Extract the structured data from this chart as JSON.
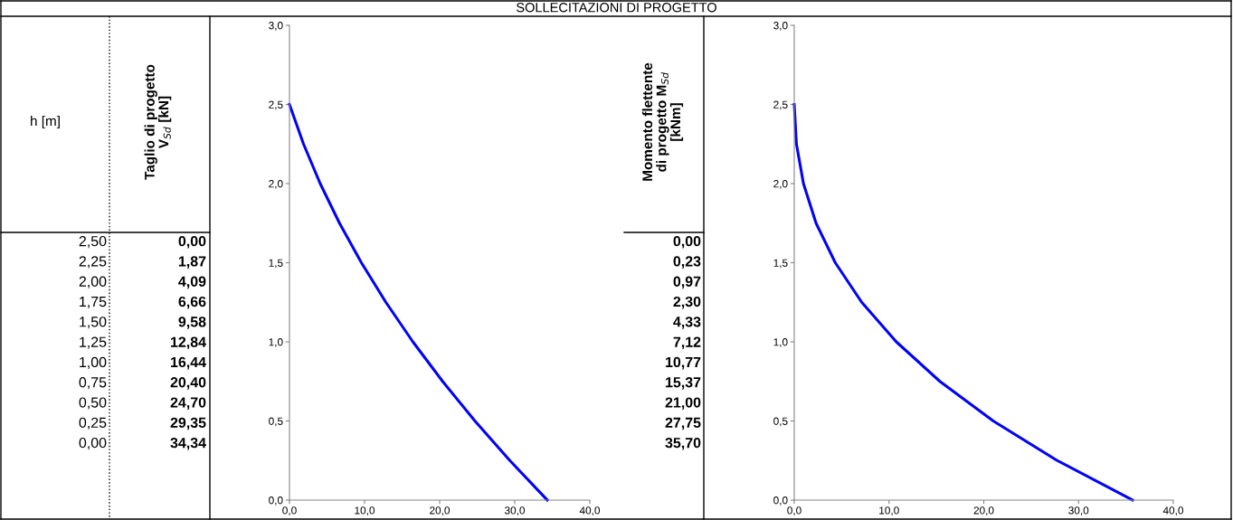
{
  "chart_data": [
    {
      "type": "line",
      "title": "SOLLECITAZIONI DI PROGETTO",
      "annotations": [
        "h [m]",
        "2,50",
        "2,25",
        "2,00",
        "1,75",
        "1,50",
        "1,25",
        "1,00",
        "0,75",
        "0,50",
        "0,25",
        "0,00",
        "Taglio di progetto\nV$_{Sd}$ [kN]",
        "0,00",
        "1,87",
        "4,09",
        "6,66",
        "9,58",
        "12,84",
        "16,44",
        "20,40",
        "24,70",
        "29,35",
        "34,34"
      ],
      "x": [
        0.0,
        1.87,
        4.09,
        6.66,
        9.58,
        12.84,
        16.44,
        20.4,
        24.7,
        29.35,
        34.34
      ],
      "series": [
        {
          "color": "#0000ff",
          "values": [
            2.5,
            2.25,
            2.0,
            1.75,
            1.5,
            1.25,
            1.0,
            0.75,
            0.5,
            0.25,
            0.0
          ]
        }
      ],
      "xlim": [
        0,
        40
      ],
      "ylim": [
        0,
        3
      ],
      "xticks": [
        {
          "value": 0,
          "label": "0,0"
        },
        {
          "value": 10,
          "label": "10,0"
        },
        {
          "value": 20,
          "label": "20,0"
        },
        {
          "value": 30,
          "label": "30,0"
        },
        {
          "value": 40,
          "label": "40,0"
        }
      ],
      "yticks": [
        {
          "value": 0,
          "label": "0,0"
        },
        {
          "value": 0.5,
          "label": "0,5"
        },
        {
          "value": 1,
          "label": "1,0"
        },
        {
          "value": 1.5,
          "label": "1,5"
        },
        {
          "value": 2,
          "label": "2,0"
        },
        {
          "value": 2.5,
          "label": "2,5"
        },
        {
          "value": 3,
          "label": "3,0"
        }
      ],
      "grid": false
    },
    {
      "type": "line",
      "annotations": [
        "Momento flettente\ndi progetto M$_{Sd}$\n[kNm]",
        "0,00",
        "0,23",
        "0,97",
        "2,30",
        "4,33",
        "7,12",
        "10,77",
        "15,37",
        "21,00",
        "27,75",
        "35,70"
      ],
      "x": [
        0.0,
        0.23,
        0.97,
        2.3,
        4.33,
        7.12,
        10.77,
        15.37,
        21.0,
        27.75,
        35.7
      ],
      "series": [
        {
          "color": "#0000ff",
          "values": [
            2.5,
            2.25,
            2.0,
            1.75,
            1.5,
            1.25,
            1.0,
            0.75,
            0.5,
            0.25,
            0.0
          ]
        }
      ],
      "xlim": [
        0,
        40
      ],
      "ylim": [
        0,
        3
      ],
      "xticks": [
        {
          "value": 0,
          "label": "0,0"
        },
        {
          "value": 10,
          "label": "10,0"
        },
        {
          "value": 20,
          "label": "20,0"
        },
        {
          "value": 30,
          "label": "30,0"
        },
        {
          "value": 40,
          "label": "40,0"
        }
      ],
      "yticks": [
        {
          "value": 0,
          "label": "0,0"
        },
        {
          "value": 0.5,
          "label": "0,5"
        },
        {
          "value": 1,
          "label": "1,0"
        },
        {
          "value": 1.5,
          "label": "1,5"
        },
        {
          "value": 2,
          "label": "2,0"
        },
        {
          "value": 2.5,
          "label": "2,5"
        },
        {
          "value": 3,
          "label": "3,0"
        }
      ],
      "grid": false
    }
  ]
}
